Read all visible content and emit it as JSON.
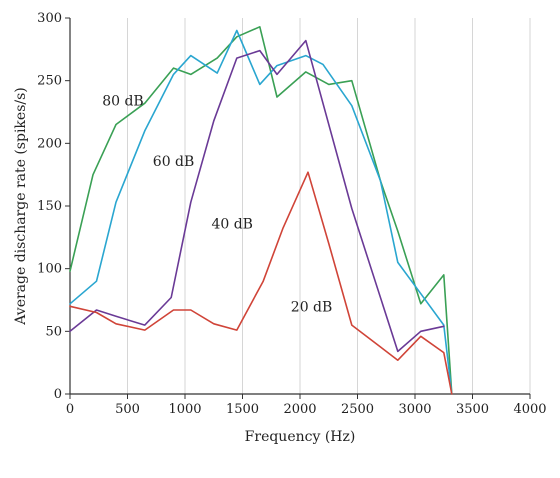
{
  "chart_data": {
    "type": "line",
    "title": "",
    "xlabel": "Frequency (Hz)",
    "ylabel": "Average discharge rate (spikes/s)",
    "xlim": [
      0,
      4000
    ],
    "ylim": [
      0,
      300
    ],
    "xticks": [
      0,
      500,
      1000,
      1500,
      2000,
      2500,
      3000,
      3500,
      4000
    ],
    "yticks": [
      0,
      50,
      100,
      150,
      200,
      250,
      300
    ],
    "grid": "vertical",
    "legend": "inline labels",
    "series": [
      {
        "name": "80 dB",
        "color": "#3aa055",
        "x": [
          0,
          200,
          400,
          650,
          900,
          1050,
          1280,
          1450,
          1650,
          1800,
          2050,
          2250,
          2450,
          2700,
          2850,
          3050,
          3250,
          3320
        ],
        "y": [
          98,
          175,
          215,
          232,
          260,
          255,
          268,
          285,
          293,
          237,
          257,
          247,
          250,
          170,
          130,
          72,
          95,
          0
        ]
      },
      {
        "name": "60 dB",
        "color": "#2aa6d0",
        "x": [
          0,
          230,
          400,
          650,
          900,
          1050,
          1280,
          1450,
          1650,
          1800,
          2050,
          2200,
          2450,
          2700,
          2850,
          3050,
          3250,
          3320
        ],
        "y": [
          72,
          90,
          153,
          210,
          255,
          270,
          256,
          290,
          247,
          262,
          270,
          263,
          230,
          170,
          105,
          80,
          55,
          0
        ]
      },
      {
        "name": "40 dB",
        "color": "#6a3a96",
        "x": [
          0,
          230,
          400,
          650,
          880,
          1050,
          1250,
          1450,
          1650,
          1800,
          2050,
          2450,
          2850,
          3050,
          3250
        ],
        "y": [
          50,
          67,
          62,
          55,
          77,
          153,
          218,
          268,
          274,
          255,
          282,
          148,
          34,
          50,
          54
        ]
      },
      {
        "name": "20 dB",
        "color": "#d04438",
        "x": [
          0,
          230,
          400,
          650,
          900,
          1050,
          1250,
          1450,
          1680,
          1850,
          2070,
          2250,
          2450,
          2850,
          3050,
          3250,
          3320
        ],
        "y": [
          70,
          65,
          56,
          51,
          67,
          67,
          56,
          51,
          90,
          132,
          177,
          120,
          55,
          27,
          46,
          33,
          0
        ]
      }
    ],
    "label_positions": [
      {
        "text": "80 dB",
        "x": 280,
        "y": 230
      },
      {
        "text": "60 dB",
        "x": 720,
        "y": 182
      },
      {
        "text": "40 dB",
        "x": 1230,
        "y": 132
      },
      {
        "text": "20 dB",
        "x": 1920,
        "y": 66
      }
    ]
  }
}
